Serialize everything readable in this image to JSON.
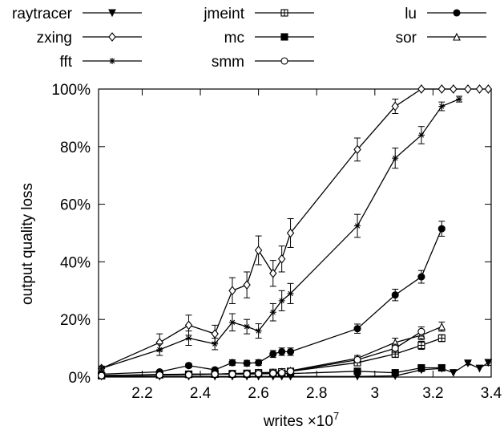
{
  "chart_data": {
    "type": "line",
    "xlabel": "writes ×10",
    "xlabel_exponent": "7",
    "ylabel": "output quality loss",
    "xlim": [
      2.05,
      3.4
    ],
    "ylim": [
      0,
      100
    ],
    "x_ticks": [
      2.2,
      2.4,
      2.6,
      2.8,
      3.0,
      3.2,
      3.4
    ],
    "x_tick_labels": [
      "2.2",
      "2.4",
      "2.6",
      "2.8",
      "3",
      "3.2",
      "3.4"
    ],
    "y_ticks": [
      0,
      20,
      40,
      60,
      80,
      100
    ],
    "y_tick_labels": [
      "0%",
      "20%",
      "40%",
      "60%",
      "80%",
      "100%"
    ],
    "grid": false,
    "legend_position": "top",
    "series": [
      {
        "name": "raytracer",
        "marker": "triangle-down-filled",
        "x": [
          2.06,
          2.26,
          2.36,
          2.45,
          2.51,
          2.56,
          2.6,
          2.65,
          2.68,
          2.71,
          2.94,
          3.07,
          3.16,
          3.23,
          3.27,
          3.32,
          3.36,
          3.39
        ],
        "y": [
          0.2,
          0.2,
          0.2,
          0.2,
          0.2,
          0.2,
          0.2,
          0.2,
          0.2,
          0.2,
          0.2,
          0.4,
          2.5,
          3.0,
          1.5,
          4.8,
          3.0,
          5.0
        ],
        "err": [
          0,
          0,
          0,
          0,
          0,
          0,
          0,
          0,
          0,
          0,
          0,
          0,
          0.6,
          0.6,
          0,
          0.6,
          0,
          1.0
        ]
      },
      {
        "name": "jmeint",
        "marker": "square-plus",
        "x": [
          2.06,
          2.26,
          2.36,
          2.45,
          2.51,
          2.56,
          2.6,
          2.65,
          2.68,
          2.71,
          2.94,
          3.07,
          3.16,
          3.23
        ],
        "y": [
          0.5,
          0.8,
          1.0,
          1.0,
          1.2,
          1.3,
          1.5,
          1.6,
          1.8,
          2.0,
          5.0,
          8.0,
          11.0,
          13.5
        ],
        "err": [
          0.2,
          0.2,
          0.3,
          0.3,
          0.3,
          0.3,
          0.3,
          0.3,
          0.3,
          0.4,
          0.8,
          1.2,
          1.4,
          1.2
        ]
      },
      {
        "name": "lu",
        "marker": "circle-filled",
        "x": [
          2.06,
          2.26,
          2.36,
          2.45,
          2.51,
          2.56,
          2.6,
          2.65,
          2.68,
          2.71,
          2.94,
          3.07,
          3.16,
          3.23
        ],
        "y": [
          1.0,
          1.8,
          4.0,
          2.5,
          5.0,
          4.8,
          5.0,
          8.0,
          8.8,
          8.8,
          16.8,
          28.5,
          34.8,
          51.5
        ],
        "err": [
          0.3,
          0.5,
          0.8,
          0.6,
          1.0,
          1.0,
          1.0,
          1.2,
          1.3,
          1.3,
          1.6,
          2.0,
          2.2,
          2.6
        ]
      },
      {
        "name": "zxing",
        "marker": "diamond-open",
        "x": [
          2.06,
          2.26,
          2.36,
          2.45,
          2.51,
          2.56,
          2.6,
          2.65,
          2.68,
          2.71,
          2.94,
          3.07,
          3.16,
          3.23,
          3.27,
          3.32,
          3.36,
          3.39
        ],
        "y": [
          3.0,
          12.0,
          18.0,
          15.0,
          30.0,
          32.0,
          44.0,
          36.0,
          41.0,
          50.0,
          79.0,
          94.0,
          100.0,
          100.0,
          100.0,
          100.0,
          100.0,
          100.0
        ],
        "err": [
          0.8,
          3.0,
          3.5,
          3.0,
          4.5,
          4.5,
          5.0,
          4.5,
          4.5,
          5.0,
          4.0,
          2.5,
          0,
          0,
          0,
          0,
          0,
          0
        ]
      },
      {
        "name": "mc",
        "marker": "square-filled",
        "x": [
          2.06,
          2.26,
          2.36,
          2.45,
          2.51,
          2.56,
          2.6,
          2.65,
          2.68,
          2.71,
          2.94,
          3.07,
          3.16,
          3.23
        ],
        "y": [
          0.5,
          0.8,
          0.9,
          1.0,
          1.0,
          1.0,
          1.1,
          1.2,
          1.2,
          1.2,
          2.0,
          1.5,
          3.2,
          3.2
        ],
        "err": [
          0.2,
          0.2,
          0.2,
          0.2,
          0.2,
          0.2,
          0.2,
          0.2,
          0.2,
          0.2,
          0.4,
          0.3,
          0.5,
          0.5
        ]
      },
      {
        "name": "sor",
        "marker": "triangle-up-open",
        "x": [
          2.06,
          2.26,
          2.36,
          2.45,
          2.51,
          2.56,
          2.6,
          2.65,
          2.68,
          2.71,
          2.94,
          3.07,
          3.16,
          3.23
        ],
        "y": [
          0.5,
          0.9,
          1.0,
          1.0,
          1.2,
          1.3,
          1.5,
          1.6,
          1.8,
          2.2,
          6.5,
          12.0,
          14.5,
          17.5
        ],
        "err": [
          0.2,
          0.2,
          0.3,
          0.3,
          0.3,
          0.3,
          0.3,
          0.3,
          0.3,
          0.4,
          1.0,
          1.5,
          1.6,
          1.6
        ]
      },
      {
        "name": "fft",
        "marker": "asterisk",
        "x": [
          2.06,
          2.26,
          2.36,
          2.45,
          2.51,
          2.56,
          2.6,
          2.65,
          2.68,
          2.71,
          2.94,
          3.07,
          3.16,
          3.23,
          3.29
        ],
        "y": [
          3.0,
          9.5,
          13.5,
          11.5,
          19.0,
          17.5,
          16.0,
          22.5,
          26.5,
          29.0,
          52.5,
          76.0,
          84.0,
          94.0,
          96.5
        ],
        "err": [
          0.8,
          2.0,
          2.5,
          2.0,
          3.0,
          2.5,
          2.5,
          3.0,
          3.5,
          3.5,
          4.0,
          3.5,
          3.0,
          1.5,
          1.0
        ]
      },
      {
        "name": "smm",
        "marker": "circle-open",
        "x": [
          2.06,
          2.26,
          2.36,
          2.45,
          2.51,
          2.56,
          2.6,
          2.65,
          2.68,
          2.71,
          2.94,
          3.07,
          3.16
        ],
        "y": [
          0.5,
          0.7,
          0.8,
          1.0,
          1.0,
          1.1,
          1.2,
          1.3,
          1.5,
          2.0,
          6.0,
          10.0,
          15.8
        ],
        "err": [
          0.2,
          0.2,
          0.2,
          0.2,
          0.2,
          0.2,
          0.2,
          0.3,
          0.3,
          0.4,
          1.0,
          1.4,
          1.6
        ]
      }
    ]
  }
}
